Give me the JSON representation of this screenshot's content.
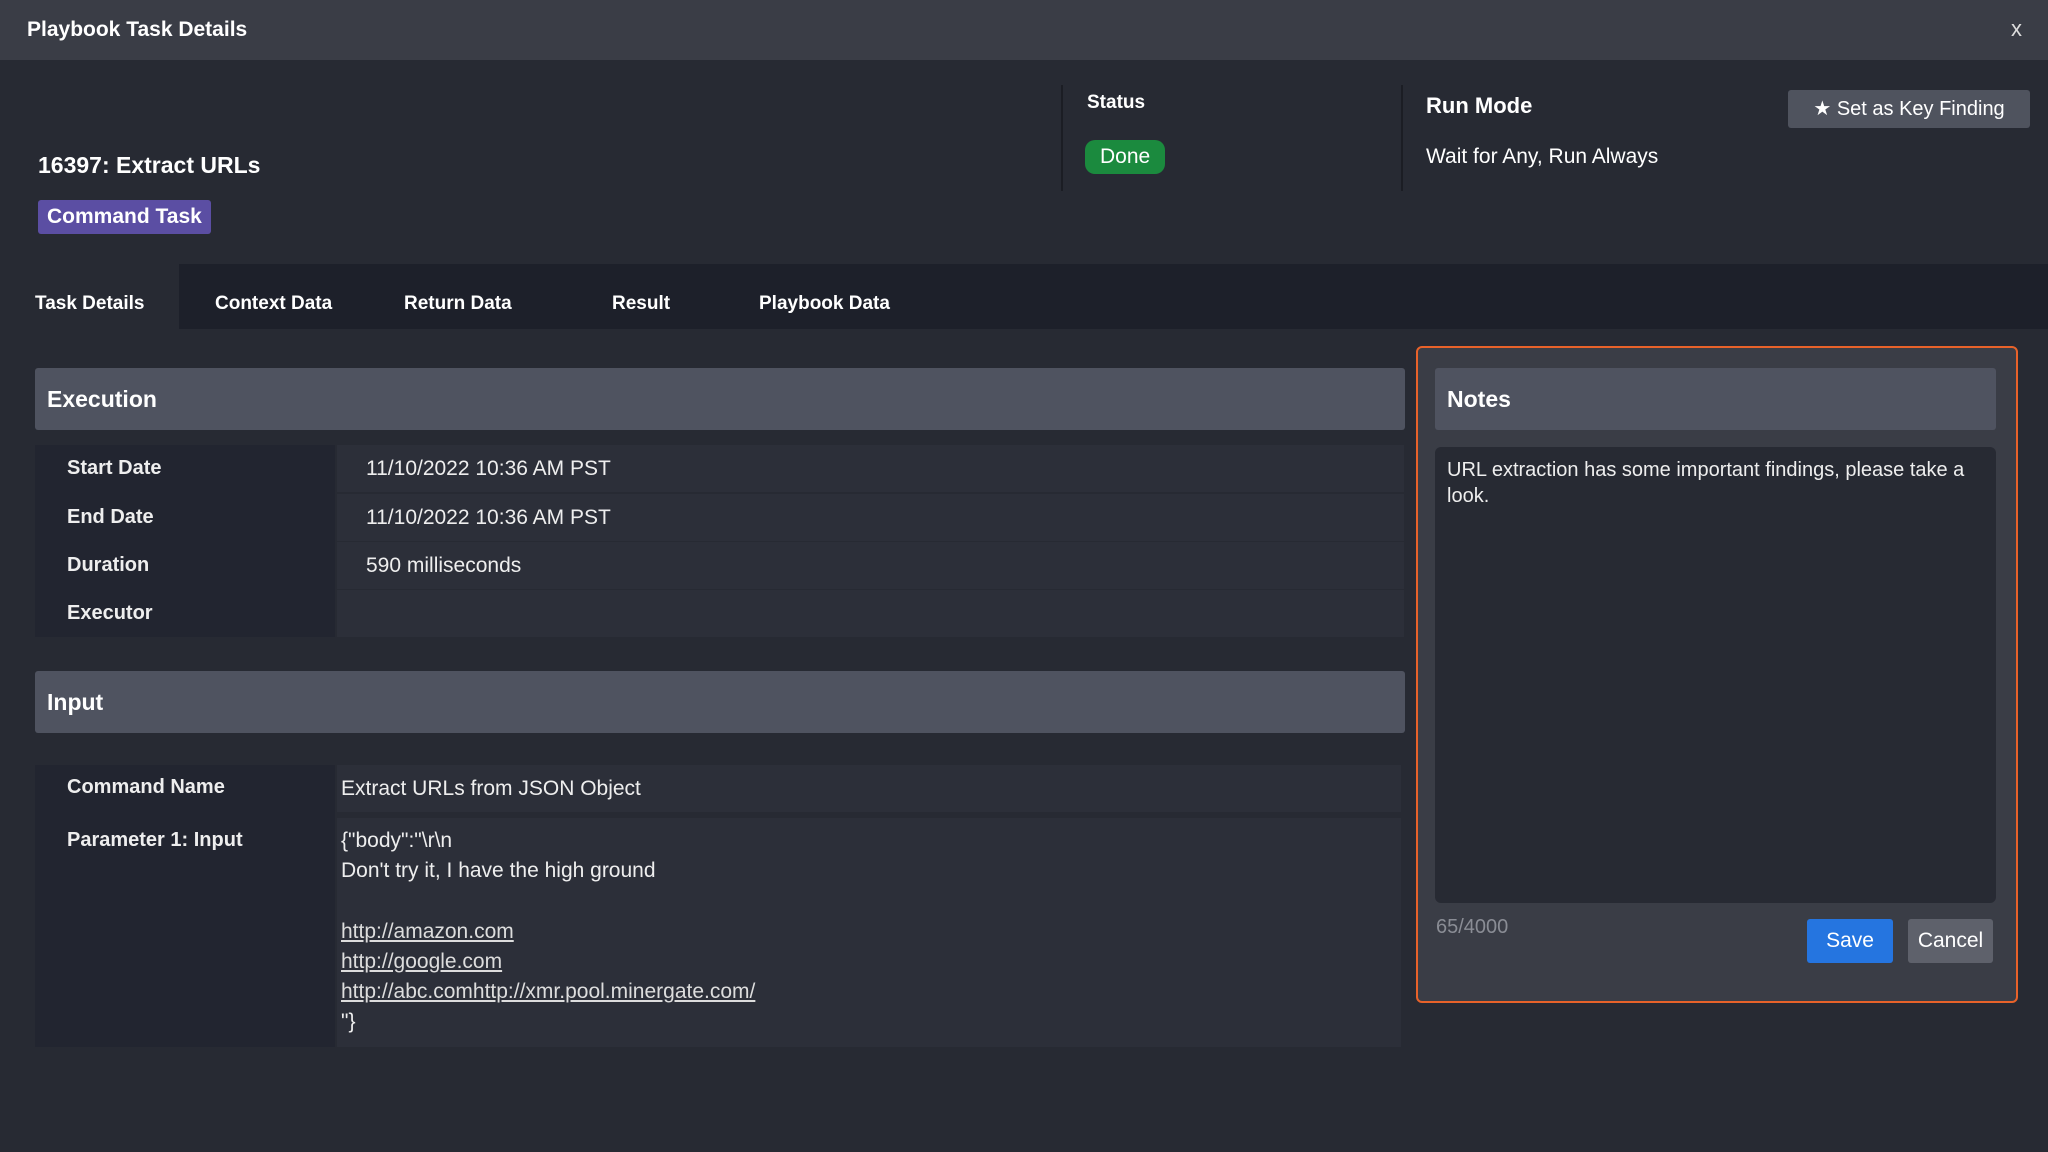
{
  "window": {
    "title": "Playbook Task Details",
    "close_label": "x"
  },
  "header": {
    "task_name": "16397: Extract URLs",
    "task_type": "Command Task",
    "status_label": "Status",
    "status": "Done",
    "status_color": "#1b8a3e",
    "run_mode_label": "Run Mode",
    "run_mode": "Wait for Any, Run Always",
    "key_finding_label": "Set as Key Finding"
  },
  "tabs": [
    {
      "label": "Task Details",
      "active": true
    },
    {
      "label": "Context Data"
    },
    {
      "label": "Return Data"
    },
    {
      "label": "Result"
    },
    {
      "label": "Playbook Data"
    }
  ],
  "execution": {
    "title": "Execution",
    "rows": [
      {
        "label": "Start Date",
        "value": "11/10/2022 10:36 AM PST"
      },
      {
        "label": "End Date",
        "value": "11/10/2022 10:36 AM PST"
      },
      {
        "label": "Duration",
        "value": "590 milliseconds"
      },
      {
        "label": "Executor",
        "value": ""
      }
    ]
  },
  "input": {
    "title": "Input",
    "command_name_label": "Command Name",
    "command_name": "Extract URLs from JSON Object",
    "param_label": "Parameter 1: Input",
    "param_lines": [
      "{\"body\":\"\\r\\n",
      "Don't try it, I have the high ground",
      ""
    ],
    "links": [
      "http://amazon.com",
      "http://google.com",
      "http://abc.comhttp://xmr.pool.minergate.com/"
    ],
    "param_end": "\"}"
  },
  "notes": {
    "title": "Notes",
    "text": "URL extraction has some important findings, please take a look.",
    "counter": "65/4000",
    "save_label": "Save",
    "cancel_label": "Cancel",
    "highlight_color": "#e8622a"
  }
}
